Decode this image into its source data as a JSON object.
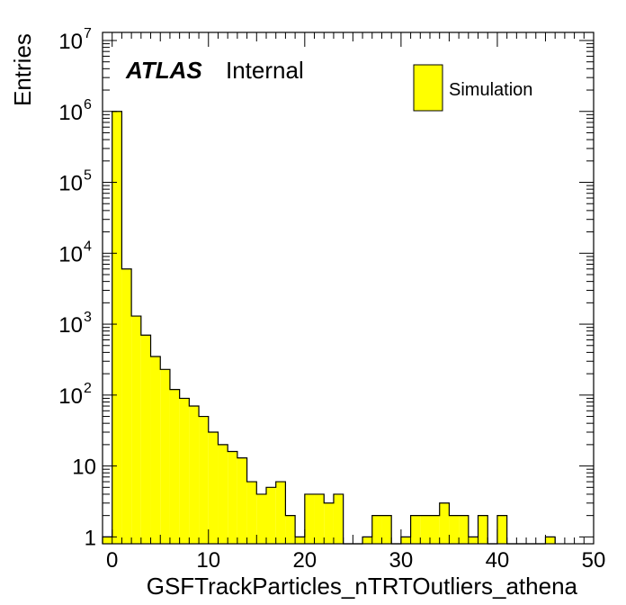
{
  "chart_data": {
    "type": "bar",
    "xlabel": "GSFTrackParticles_nTRTOutliers_athena",
    "ylabel": "Entries",
    "xlim": [
      -1,
      50
    ],
    "ylim": [
      0.8,
      13000000
    ],
    "ylog": true,
    "grid": false,
    "legend_position": "top-right",
    "fill_color": "#ffff00",
    "edge_color": "#000000",
    "x_ticks": [
      {
        "value": 0,
        "label": "0"
      },
      {
        "value": 10,
        "label": "10"
      },
      {
        "value": 20,
        "label": "20"
      },
      {
        "value": 30,
        "label": "30"
      },
      {
        "value": 40,
        "label": "40"
      },
      {
        "value": 50,
        "label": "50"
      }
    ],
    "y_ticks": [
      {
        "value": 1,
        "base": "1",
        "exp": ""
      },
      {
        "value": 10,
        "base": "10",
        "exp": ""
      },
      {
        "value": 100,
        "base": "10",
        "exp": "2"
      },
      {
        "value": 1000,
        "base": "10",
        "exp": "3"
      },
      {
        "value": 10000,
        "base": "10",
        "exp": "4"
      },
      {
        "value": 100000,
        "base": "10",
        "exp": "5"
      },
      {
        "value": 1000000,
        "base": "10",
        "exp": "6"
      },
      {
        "value": 10000000,
        "base": "10",
        "exp": "7"
      }
    ],
    "bin_width": 1,
    "bins": [
      {
        "x": -1,
        "value": 1
      },
      {
        "x": 0,
        "value": 1000000
      },
      {
        "x": 1,
        "value": 6000
      },
      {
        "x": 2,
        "value": 1300
      },
      {
        "x": 3,
        "value": 700
      },
      {
        "x": 4,
        "value": 350
      },
      {
        "x": 5,
        "value": 230
      },
      {
        "x": 6,
        "value": 120
      },
      {
        "x": 7,
        "value": 90
      },
      {
        "x": 8,
        "value": 70
      },
      {
        "x": 9,
        "value": 50
      },
      {
        "x": 10,
        "value": 30
      },
      {
        "x": 11,
        "value": 20
      },
      {
        "x": 12,
        "value": 16
      },
      {
        "x": 13,
        "value": 13
      },
      {
        "x": 14,
        "value": 6
      },
      {
        "x": 15,
        "value": 4
      },
      {
        "x": 16,
        "value": 5
      },
      {
        "x": 17,
        "value": 6
      },
      {
        "x": 18,
        "value": 2
      },
      {
        "x": 19,
        "value": 1
      },
      {
        "x": 20,
        "value": 4
      },
      {
        "x": 21,
        "value": 4
      },
      {
        "x": 22,
        "value": 3
      },
      {
        "x": 23,
        "value": 4
      },
      {
        "x": 26,
        "value": 1
      },
      {
        "x": 27,
        "value": 2
      },
      {
        "x": 28,
        "value": 2
      },
      {
        "x": 30,
        "value": 1
      },
      {
        "x": 31,
        "value": 2
      },
      {
        "x": 32,
        "value": 2
      },
      {
        "x": 33,
        "value": 2
      },
      {
        "x": 34,
        "value": 3
      },
      {
        "x": 35,
        "value": 2
      },
      {
        "x": 36,
        "value": 2
      },
      {
        "x": 37,
        "value": 1
      },
      {
        "x": 38,
        "value": 2
      },
      {
        "x": 40,
        "value": 2
      },
      {
        "x": 45,
        "value": 1
      }
    ],
    "legend": {
      "label": "Simulation"
    },
    "annotation": {
      "bold": "ATLAS",
      "normal": "Internal"
    }
  }
}
